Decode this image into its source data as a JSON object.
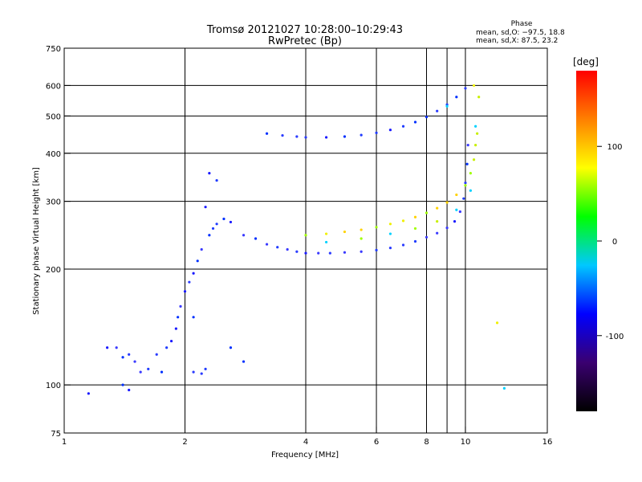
{
  "header": {
    "title": "Tromsø 20121027 10:28:00–10:29:43",
    "subtitle": "RwPretec (Bp)",
    "phase_heading": "Phase",
    "phase_o": "mean, sd,O: −97.5, 18.8",
    "phase_x": "mean, sd,X:  87.5, 23.2"
  },
  "chart_data": {
    "type": "scatter",
    "xlabel": "Frequency [MHz]",
    "ylabel": "Stationary phase Virtual Height [km]",
    "x_scale": "log",
    "y_scale": "log",
    "xlim": [
      1,
      16
    ],
    "ylim": [
      75,
      750
    ],
    "x_ticks": [
      1,
      2,
      4,
      6,
      8,
      10,
      16
    ],
    "y_ticks": [
      75,
      100,
      200,
      300,
      400,
      500,
      600,
      750
    ],
    "grid_x": [
      2,
      4,
      6,
      8,
      9,
      10
    ],
    "grid_y": [
      100,
      200,
      300,
      400,
      500,
      600
    ],
    "colorbar": {
      "label": "[deg]",
      "range": [
        -180,
        180
      ],
      "ticks": [
        100,
        0,
        -100
      ],
      "stops": [
        "#000000",
        "#3a0070",
        "#0000ff",
        "#00c8ff",
        "#00ff00",
        "#ffff00",
        "#ff8000",
        "#ff0000"
      ]
    },
    "series": [
      {
        "name": "O",
        "points": [
          [
            1.15,
            95
          ],
          [
            1.28,
            125
          ],
          [
            1.35,
            125
          ],
          [
            1.4,
            100
          ],
          [
            1.4,
            118
          ],
          [
            1.45,
            120
          ],
          [
            1.45,
            97
          ],
          [
            1.5,
            115
          ],
          [
            1.55,
            108
          ],
          [
            1.62,
            110
          ],
          [
            1.7,
            120
          ],
          [
            1.75,
            108
          ],
          [
            1.8,
            125
          ],
          [
            1.85,
            130
          ],
          [
            1.9,
            140
          ],
          [
            1.92,
            150
          ],
          [
            1.95,
            160
          ],
          [
            2.0,
            175
          ],
          [
            2.05,
            185
          ],
          [
            2.1,
            195
          ],
          [
            2.15,
            210
          ],
          [
            2.2,
            225
          ],
          [
            2.3,
            245
          ],
          [
            2.35,
            255
          ],
          [
            2.4,
            262
          ],
          [
            2.5,
            270
          ],
          [
            2.6,
            265
          ],
          [
            2.8,
            245
          ],
          [
            3.0,
            240
          ],
          [
            3.2,
            232
          ],
          [
            3.4,
            228
          ],
          [
            3.6,
            225
          ],
          [
            3.8,
            222
          ],
          [
            4.0,
            220
          ],
          [
            4.3,
            220
          ],
          [
            4.6,
            220
          ],
          [
            5.0,
            221
          ],
          [
            5.5,
            222
          ],
          [
            6.0,
            224
          ],
          [
            6.5,
            227
          ],
          [
            7.0,
            231
          ],
          [
            7.5,
            236
          ],
          [
            8.0,
            242
          ],
          [
            8.5,
            248
          ],
          [
            9.0,
            256
          ],
          [
            9.4,
            266
          ],
          [
            9.7,
            282
          ],
          [
            9.9,
            305
          ],
          [
            10.0,
            335
          ],
          [
            10.1,
            375
          ],
          [
            10.15,
            420
          ],
          [
            3.2,
            450
          ],
          [
            3.5,
            445
          ],
          [
            3.8,
            442
          ],
          [
            4.0,
            440
          ],
          [
            4.5,
            440
          ],
          [
            5.0,
            442
          ],
          [
            5.5,
            446
          ],
          [
            6.0,
            452
          ],
          [
            6.5,
            460
          ],
          [
            7.0,
            470
          ],
          [
            7.5,
            482
          ],
          [
            8.0,
            497
          ],
          [
            8.5,
            515
          ],
          [
            9.0,
            535
          ],
          [
            9.5,
            560
          ],
          [
            10.0,
            590
          ],
          [
            2.3,
            355
          ],
          [
            2.4,
            340
          ],
          [
            2.25,
            290
          ],
          [
            2.1,
            150
          ],
          [
            2.1,
            108
          ],
          [
            2.2,
            107
          ],
          [
            2.25,
            110
          ],
          [
            2.6,
            125
          ],
          [
            2.8,
            115
          ]
        ]
      },
      {
        "name": "X",
        "points": [
          [
            4.0,
            245
          ],
          [
            4.5,
            247
          ],
          [
            5.0,
            250
          ],
          [
            5.5,
            253
          ],
          [
            6.0,
            257
          ],
          [
            6.5,
            262
          ],
          [
            7.0,
            267
          ],
          [
            7.5,
            273
          ],
          [
            8.0,
            280
          ],
          [
            8.5,
            288
          ],
          [
            9.0,
            298
          ],
          [
            9.5,
            312
          ],
          [
            10.0,
            330
          ],
          [
            10.3,
            355
          ],
          [
            10.5,
            385
          ],
          [
            10.6,
            420
          ],
          [
            10.7,
            450
          ],
          [
            10.6,
            470
          ],
          [
            4.5,
            235
          ],
          [
            5.5,
            240
          ],
          [
            6.5,
            247
          ],
          [
            7.5,
            255
          ],
          [
            8.5,
            266
          ],
          [
            9.5,
            285
          ],
          [
            10.3,
            320
          ],
          [
            9.0,
            530
          ],
          [
            10.8,
            560
          ],
          [
            10.5,
            600
          ],
          [
            12.0,
            145
          ],
          [
            12.5,
            98
          ]
        ]
      }
    ]
  }
}
